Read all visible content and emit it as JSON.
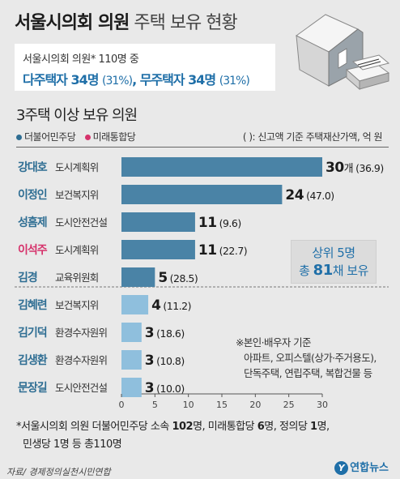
{
  "title_bold": "서울시의회 의원",
  "title_light": "주택 보유 현황",
  "summary": {
    "line1": "서울시의회 의원* 110명 중",
    "multi_label": "다주택자 34명",
    "multi_pct": "(31%)",
    "sep": ", ",
    "none_label": "무주택자 34명",
    "none_pct": "(31%)"
  },
  "subtitle": "3주택 이상 보유 의원",
  "legend": [
    {
      "label": "더불어민주당",
      "color": "#2f6e93"
    },
    {
      "label": "미래통합당",
      "color": "#d6336c"
    }
  ],
  "unit_note": "( ): 신고액 기준 주택재산가액, 억 원",
  "top5_note": {
    "line1": "상위 5명",
    "line2_pre": "총 ",
    "line2_num": "81",
    "line2_post": "채 보유"
  },
  "side_note": [
    "※본인·배우자 기준",
    "아파트, 오피스텔(상가·주거용도),",
    "단독주택, 연립주택, 복합건물 등"
  ],
  "chart_data": {
    "type": "bar",
    "orientation": "horizontal",
    "categories": [
      "강대호",
      "이정인",
      "성흠제",
      "이석주",
      "김경",
      "김혜련",
      "김기덕",
      "김생환",
      "문장길"
    ],
    "committees": [
      "도시계획위",
      "보건복지위",
      "도시안전건설",
      "도시계획위",
      "교육위원회",
      "보건복지위",
      "환경수자원위",
      "환경수자원위",
      "도시안전건설"
    ],
    "party": [
      "더불어민주당",
      "더불어민주당",
      "더불어민주당",
      "미래통합당",
      "더불어민주당",
      "더불어민주당",
      "더불어민주당",
      "더불어민주당",
      "더불어민주당"
    ],
    "values": [
      30,
      24,
      11,
      11,
      5,
      4,
      3,
      3,
      3
    ],
    "value_labels": [
      "30",
      "24",
      "11",
      "11",
      "5",
      "4",
      "3",
      "3",
      "3"
    ],
    "first_unit": "개",
    "asset_labels": [
      "(36.9)",
      "(47.0)",
      "(9.6)",
      "(22.7)",
      "(28.5)",
      "(11.2)",
      "(18.6)",
      "(10.8)",
      "(10.0)"
    ],
    "xlim": [
      0,
      30
    ],
    "xticks": [
      "0",
      "5",
      "10",
      "15",
      "20",
      "25",
      "30"
    ],
    "colors": {
      "top5": "#4a83a6",
      "others": "#8fbfdd",
      "dem_name": "#2f6e93",
      "utd_name": "#d6336c"
    }
  },
  "footnote_parts": [
    "*서울시의회 의원 더불어민주당 소속 ",
    "102",
    "명, 미래통합당 ",
    "6",
    "명, 정의당 ",
    "1",
    "명,",
    "민생당 1명 등 총110명"
  ],
  "source": "자료/ 경제정의실천시민연합",
  "logo": {
    "mark": "Y",
    "text": "연합뉴스"
  }
}
